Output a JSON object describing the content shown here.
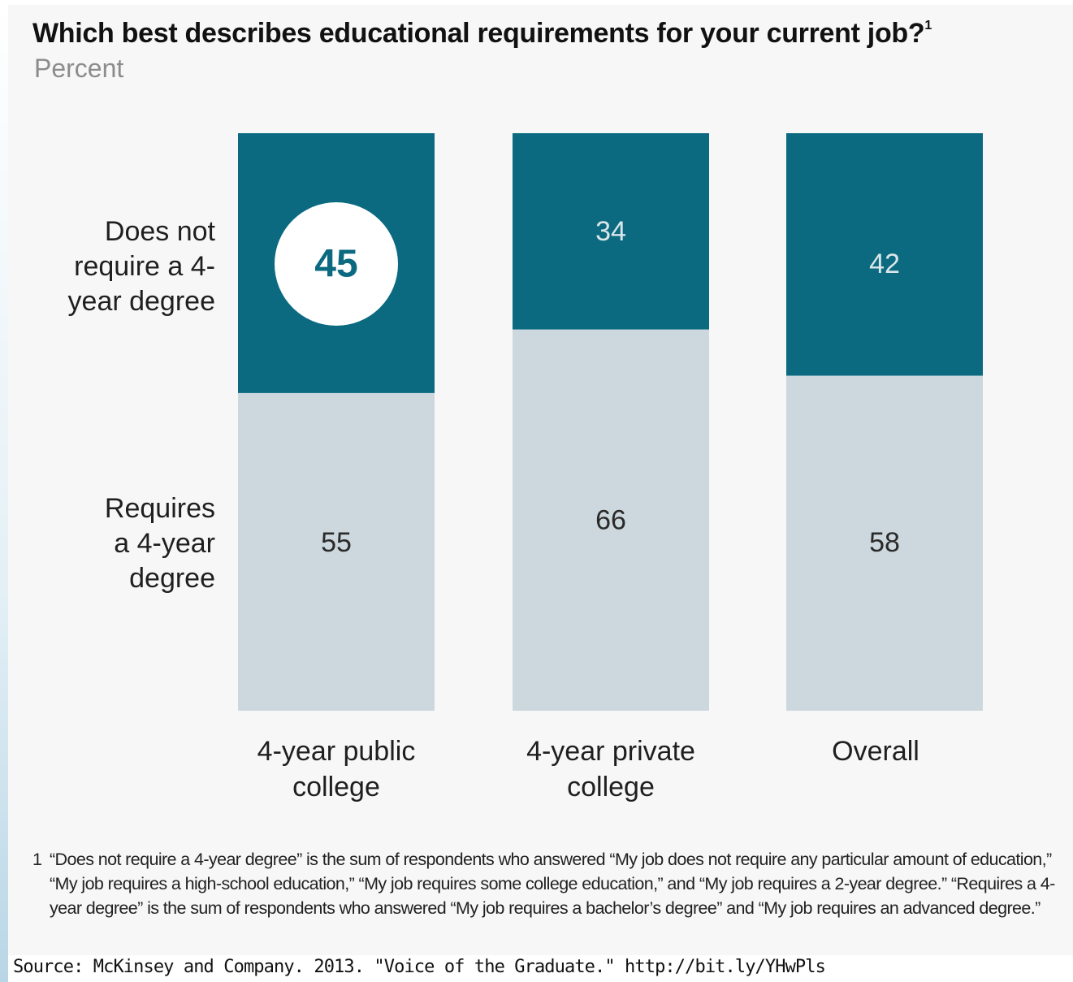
{
  "chart_data": {
    "type": "bar",
    "stacked": true,
    "title": "Which best describes educational requirements for your current job?",
    "title_footnote_mark": "1",
    "subtitle": "Percent",
    "categories": [
      "4-year public college",
      "4-year private college",
      "Overall"
    ],
    "categories_display": [
      [
        "4-year public",
        "college"
      ],
      [
        "4-year private",
        "college"
      ],
      [
        "Overall"
      ]
    ],
    "series": [
      {
        "name": "Does not require a 4-year degree",
        "label_lines": [
          "Does not",
          "require a 4-",
          "year degree"
        ],
        "values": [
          45,
          34,
          42
        ],
        "color": "#0b6a80",
        "label_color": "#dbe6ea"
      },
      {
        "name": "Requires a 4-year degree",
        "label_lines": [
          "Requires",
          "a 4-year",
          "degree"
        ],
        "values": [
          55,
          66,
          58
        ],
        "color": "#cdd8de",
        "label_color": "#2a2a2a"
      }
    ],
    "ylim": [
      0,
      100
    ],
    "highlight": {
      "category_index": 0,
      "series_index": 0,
      "color": "#0b6a80"
    }
  },
  "footnote": {
    "number": "1",
    "text": "“Does not require a 4-year degree” is the sum of respondents who answered “My job does not require any particular amount of education,” “My job requires a high-school education,” “My job requires some college education,” and “My job requires a 2-year degree.” “Requires a 4-year degree” is the sum of respondents who answered “My job requires a bachelor’s degree” and “My job requires an advanced degree.”"
  },
  "source": "Source: McKinsey and Company. 2013. \"Voice of the Graduate.\" http://bit.ly/YHwPls"
}
